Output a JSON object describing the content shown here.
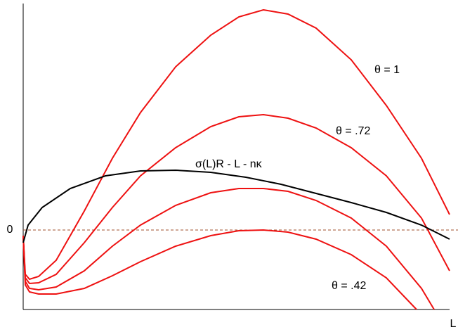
{
  "chart_data": {
    "type": "line",
    "xlabel": "L",
    "xlim": [
      0,
      6.07
    ],
    "ylim": [
      -1.13,
      3.22
    ],
    "yticks": [
      0
    ],
    "zero_line": true,
    "series": [
      {
        "name": "θ = 1",
        "color": "#ee1111",
        "x": [
          0,
          0.03,
          0.09,
          0.22,
          0.47,
          0.87,
          1.27,
          1.67,
          2.17,
          2.67,
          3.07,
          3.42,
          3.77,
          4.17,
          4.67,
          5.17,
          5.67,
          6.07
        ],
        "values": [
          -0.08,
          -0.63,
          -0.7,
          -0.66,
          -0.43,
          0.27,
          1.02,
          1.67,
          2.32,
          2.77,
          3.03,
          3.13,
          3.07,
          2.87,
          2.42,
          1.77,
          1.02,
          0.22
        ]
      },
      {
        "name": "θ = .72",
        "color": "#ee1111",
        "x": [
          0,
          0.03,
          0.09,
          0.22,
          0.47,
          0.87,
          1.27,
          1.67,
          2.17,
          2.67,
          3.07,
          3.42,
          3.77,
          4.17,
          4.67,
          5.17,
          5.67,
          6.07
        ],
        "values": [
          -0.08,
          -0.68,
          -0.76,
          -0.75,
          -0.63,
          -0.18,
          0.32,
          0.77,
          1.17,
          1.47,
          1.61,
          1.64,
          1.59,
          1.45,
          1.17,
          0.77,
          0.17,
          -0.58
        ]
      },
      {
        "color": "#ee1111",
        "x": [
          0,
          0.03,
          0.09,
          0.22,
          0.47,
          0.87,
          1.27,
          1.67,
          2.17,
          2.67,
          3.07,
          3.42,
          3.77,
          4.17,
          4.67,
          5.17,
          5.67,
          5.85
        ],
        "values": [
          -0.08,
          -0.73,
          -0.83,
          -0.85,
          -0.81,
          -0.58,
          -0.23,
          0.07,
          0.35,
          0.53,
          0.59,
          0.59,
          0.55,
          0.42,
          0.17,
          -0.23,
          -0.83,
          -1.13
        ]
      },
      {
        "name": "θ = .42",
        "color": "#ee1111",
        "x": [
          0,
          0.03,
          0.09,
          0.22,
          0.47,
          0.87,
          1.27,
          1.67,
          2.17,
          2.67,
          3.07,
          3.42,
          3.77,
          4.17,
          4.67,
          5.17,
          5.6
        ],
        "values": [
          -0.08,
          -0.78,
          -0.88,
          -0.91,
          -0.91,
          -0.83,
          -0.65,
          -0.45,
          -0.23,
          -0.08,
          -0.01,
          0,
          -0.03,
          -0.13,
          -0.35,
          -0.68,
          -1.13
        ]
      },
      {
        "name": "σ(L)R - L - nκ",
        "color": "#000000",
        "x": [
          0,
          0.07,
          0.27,
          0.67,
          1.17,
          1.67,
          2.17,
          2.67,
          3.17,
          3.67,
          4.17,
          4.67,
          5.17,
          5.67,
          6.07
        ],
        "values": [
          -0.18,
          0.07,
          0.32,
          0.59,
          0.77,
          0.84,
          0.85,
          0.82,
          0.75,
          0.65,
          0.52,
          0.39,
          0.25,
          0.07,
          -0.13
        ]
      }
    ]
  }
}
